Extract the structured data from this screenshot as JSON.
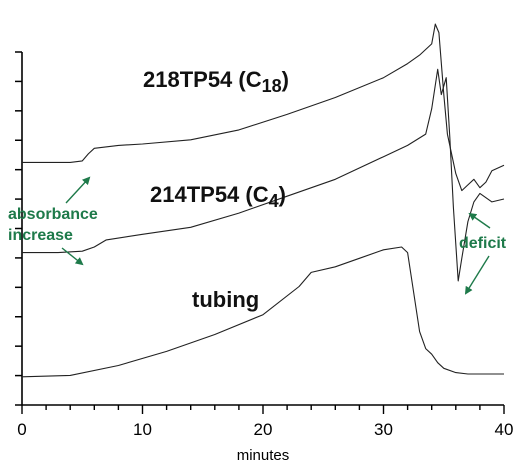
{
  "chart_data": {
    "type": "line",
    "title": "",
    "xlabel": "minutes",
    "ylabel": "",
    "xlim": [
      0,
      40
    ],
    "x_ticks": [
      "0",
      "10",
      "20",
      "30",
      "40"
    ],
    "y_tick_count": 13,
    "grid": false,
    "accent_color": "#1e7a4a",
    "series": [
      {
        "name": "218TP54 (C",
        "subscript": "18",
        "suffix": ")",
        "points": [
          [
            0,
            8.6
          ],
          [
            2,
            8.6
          ],
          [
            4,
            8.6
          ],
          [
            5,
            8.65
          ],
          [
            5.5,
            8.9
          ],
          [
            6,
            9.1
          ],
          [
            8,
            9.2
          ],
          [
            10,
            9.25
          ],
          [
            14,
            9.4
          ],
          [
            18,
            9.75
          ],
          [
            22,
            10.3
          ],
          [
            26,
            10.9
          ],
          [
            30,
            11.6
          ],
          [
            32,
            12.1
          ],
          [
            33,
            12.4
          ],
          [
            34,
            12.8
          ],
          [
            34.3,
            13.5
          ],
          [
            34.6,
            13.2
          ],
          [
            35,
            11.0
          ],
          [
            35.3,
            9.6
          ],
          [
            35.6,
            9.0
          ],
          [
            36,
            8.2
          ],
          [
            36.5,
            7.6
          ],
          [
            37,
            7.8
          ],
          [
            37.5,
            8.0
          ],
          [
            38,
            7.7
          ],
          [
            38.5,
            7.9
          ],
          [
            39,
            8.3
          ],
          [
            40,
            8.5
          ]
        ]
      },
      {
        "name": "214TP54 (C",
        "subscript": "4",
        "suffix": ")",
        "points": [
          [
            0,
            5.4
          ],
          [
            3,
            5.4
          ],
          [
            5,
            5.45
          ],
          [
            6,
            5.6
          ],
          [
            7,
            5.85
          ],
          [
            10,
            6.05
          ],
          [
            14,
            6.3
          ],
          [
            18,
            6.8
          ],
          [
            22,
            7.4
          ],
          [
            26,
            8.0
          ],
          [
            30,
            8.8
          ],
          [
            32,
            9.2
          ],
          [
            33.5,
            9.6
          ],
          [
            34,
            10.5
          ],
          [
            34.5,
            11.9
          ],
          [
            34.8,
            11.0
          ],
          [
            35.2,
            11.6
          ],
          [
            35.5,
            9.5
          ],
          [
            35.8,
            7.0
          ],
          [
            36.2,
            4.4
          ],
          [
            36.5,
            5.2
          ],
          [
            37,
            6.5
          ],
          [
            37.5,
            7.2
          ],
          [
            38,
            7.5
          ],
          [
            39,
            7.2
          ],
          [
            40,
            7.3
          ]
        ]
      },
      {
        "name": "tubing",
        "subscript": "",
        "suffix": "",
        "points": [
          [
            0,
            1.0
          ],
          [
            4,
            1.05
          ],
          [
            8,
            1.4
          ],
          [
            12,
            1.9
          ],
          [
            16,
            2.5
          ],
          [
            20,
            3.2
          ],
          [
            23,
            4.2
          ],
          [
            24,
            4.7
          ],
          [
            26,
            4.9
          ],
          [
            28,
            5.2
          ],
          [
            30,
            5.5
          ],
          [
            31.5,
            5.6
          ],
          [
            32,
            5.4
          ],
          [
            32.5,
            4.0
          ],
          [
            33,
            2.6
          ],
          [
            33.5,
            2.0
          ],
          [
            34,
            1.8
          ],
          [
            34.5,
            1.5
          ],
          [
            35,
            1.3
          ],
          [
            36,
            1.15
          ],
          [
            37,
            1.1
          ],
          [
            38,
            1.1
          ],
          [
            40,
            1.1
          ]
        ]
      }
    ],
    "annotations": [
      {
        "text": "absorbance",
        "text2": "increase"
      },
      {
        "text": "deficit"
      }
    ]
  }
}
